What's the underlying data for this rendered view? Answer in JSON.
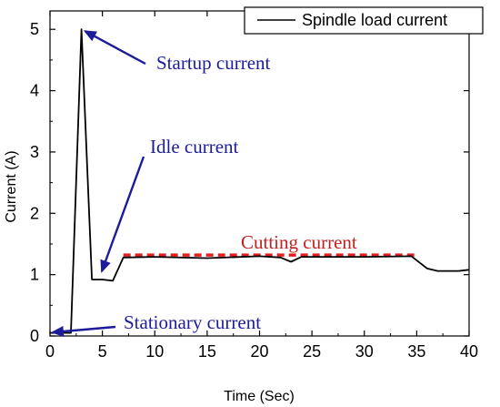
{
  "chart_data": {
    "type": "line",
    "title": "",
    "xlabel": "Time (Sec)",
    "ylabel": "Current (A)",
    "xlim": [
      0,
      40
    ],
    "ylim": [
      0,
      5.3
    ],
    "xticks": [
      0,
      5,
      10,
      15,
      20,
      25,
      30,
      35,
      40
    ],
    "yticks": [
      0,
      1,
      2,
      3,
      4,
      5
    ],
    "grid": false,
    "legend_position": "top-right",
    "series": [
      {
        "name": "Spindle load current",
        "color": "#000000",
        "x": [
          0,
          2.0,
          3.0,
          4.0,
          5.0,
          6.0,
          7.0,
          10,
          15,
          20,
          22,
          23,
          24,
          25,
          30,
          34.5,
          36,
          37,
          39,
          40
        ],
        "y": [
          0.05,
          0.05,
          5.0,
          0.92,
          0.92,
          0.9,
          1.28,
          1.29,
          1.27,
          1.3,
          1.28,
          1.21,
          1.29,
          1.29,
          1.29,
          1.3,
          1.1,
          1.06,
          1.06,
          1.08
        ]
      }
    ],
    "reference_lines": [
      {
        "label": "Cutting current",
        "color": "#e02020",
        "style": "dashed",
        "x": [
          7,
          35
        ],
        "y": 1.32
      }
    ],
    "annotations": [
      {
        "text": "Startup current",
        "color": "#1c1c9a",
        "point": [
          3.0,
          5.0
        ]
      },
      {
        "text": "Idle current",
        "color": "#1c1c9a",
        "point": [
          5.0,
          0.95
        ]
      },
      {
        "text": "Cutting current",
        "color": "#c02020",
        "point": null
      },
      {
        "text": "Stationary  current",
        "color": "#1c1c9a",
        "point": [
          0.0,
          0.06
        ]
      }
    ]
  }
}
